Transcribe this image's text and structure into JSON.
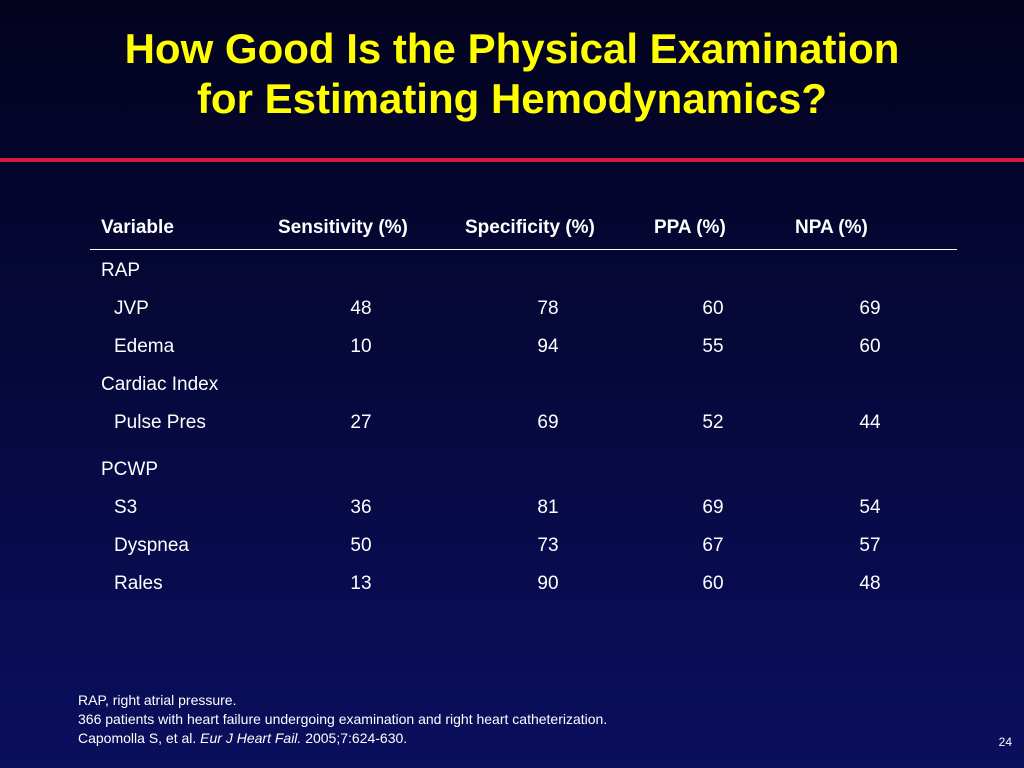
{
  "slide": {
    "title_line1": "How Good Is the Physical Examination",
    "title_line2": "for Estimating Hemodynamics?",
    "page_number": "24",
    "colors": {
      "title": "#ffff00",
      "accent_rule": "#d41a3c",
      "background": "#06083a",
      "text": "#ffffff"
    }
  },
  "table": {
    "headers": [
      "Variable",
      "Sensitivity (%)",
      "Specificity (%)",
      "PPA (%)",
      "NPA (%)"
    ],
    "groups": [
      {
        "name": "RAP",
        "rows": [
          {
            "variable": "JVP",
            "sensitivity": "48",
            "specificity": "78",
            "ppa": "60",
            "npa": "69"
          },
          {
            "variable": "Edema",
            "sensitivity": "10",
            "specificity": "94",
            "ppa": "55",
            "npa": "60"
          }
        ]
      },
      {
        "name": "Cardiac Index",
        "rows": [
          {
            "variable": "Pulse Pres",
            "sensitivity": "27",
            "specificity": "69",
            "ppa": "52",
            "npa": "44"
          }
        ]
      },
      {
        "name": "PCWP",
        "rows": [
          {
            "variable": "S3",
            "sensitivity": "36",
            "specificity": "81",
            "ppa": "69",
            "npa": "54"
          },
          {
            "variable": "Dyspnea",
            "sensitivity": "50",
            "specificity": "73",
            "ppa": "67",
            "npa": "57"
          },
          {
            "variable": "Rales",
            "sensitivity": "13",
            "specificity": "90",
            "ppa": "60",
            "npa": "48"
          }
        ]
      }
    ]
  },
  "footnotes": {
    "line1": "RAP, right atrial pressure.",
    "line2": "366 patients with heart failure undergoing examination and right heart catheterization.",
    "line3_prefix": "Capomolla S, et al. ",
    "line3_journal": "Eur J Heart Fail.",
    "line3_suffix": " 2005;7:624-630."
  }
}
